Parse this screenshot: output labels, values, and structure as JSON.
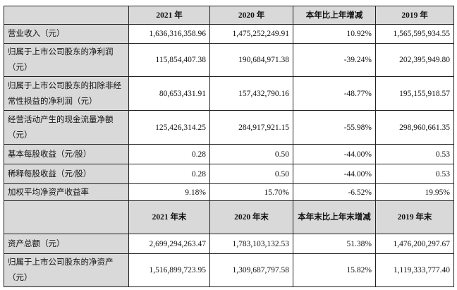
{
  "header1": [
    "",
    "2021 年",
    "2020 年",
    "本年比上年增减",
    "2019 年"
  ],
  "rows1": [
    {
      "label": "营业收入（元）",
      "values": [
        "1,636,316,358.96",
        "1,475,252,249.91",
        "10.92%",
        "1,565,595,934.55"
      ]
    },
    {
      "label": "归属于上市公司股东的净利润（元）",
      "values": [
        "115,854,407.38",
        "190,684,971.38",
        "-39.24%",
        "202,395,949.80"
      ]
    },
    {
      "label": "归属于上市公司股东的扣除非经常性损益的净利润（元）",
      "values": [
        "80,653,431.91",
        "157,432,790.16",
        "-48.77%",
        "195,155,918.57"
      ]
    },
    {
      "label": "经营活动产生的现金流量净额（元）",
      "values": [
        "125,426,314.25",
        "284,917,921.15",
        "-55.98%",
        "298,960,661.35"
      ]
    },
    {
      "label": "基本每股收益（元/股）",
      "values": [
        "0.28",
        "0.50",
        "-44.00%",
        "0.53"
      ]
    },
    {
      "label": "稀释每股收益（元/股）",
      "values": [
        "0.28",
        "0.50",
        "-44.00%",
        "0.53"
      ]
    },
    {
      "label": "加权平均净资产收益率",
      "values": [
        "9.18%",
        "15.70%",
        "-6.52%",
        "19.95%"
      ]
    }
  ],
  "header2": [
    "",
    "2021 年末",
    "2020 年末",
    "本年末比上年末增减",
    "2019 年末"
  ],
  "rows2": [
    {
      "label": "资产总额（元）",
      "values": [
        "2,699,294,263.47",
        "1,783,103,132.53",
        "51.38%",
        "1,476,200,297.67"
      ]
    },
    {
      "label": "归属于上市公司股东的净资产（元）",
      "values": [
        "1,516,899,723.95",
        "1,309,687,797.58",
        "15.82%",
        "1,119,333,777.40"
      ]
    }
  ]
}
